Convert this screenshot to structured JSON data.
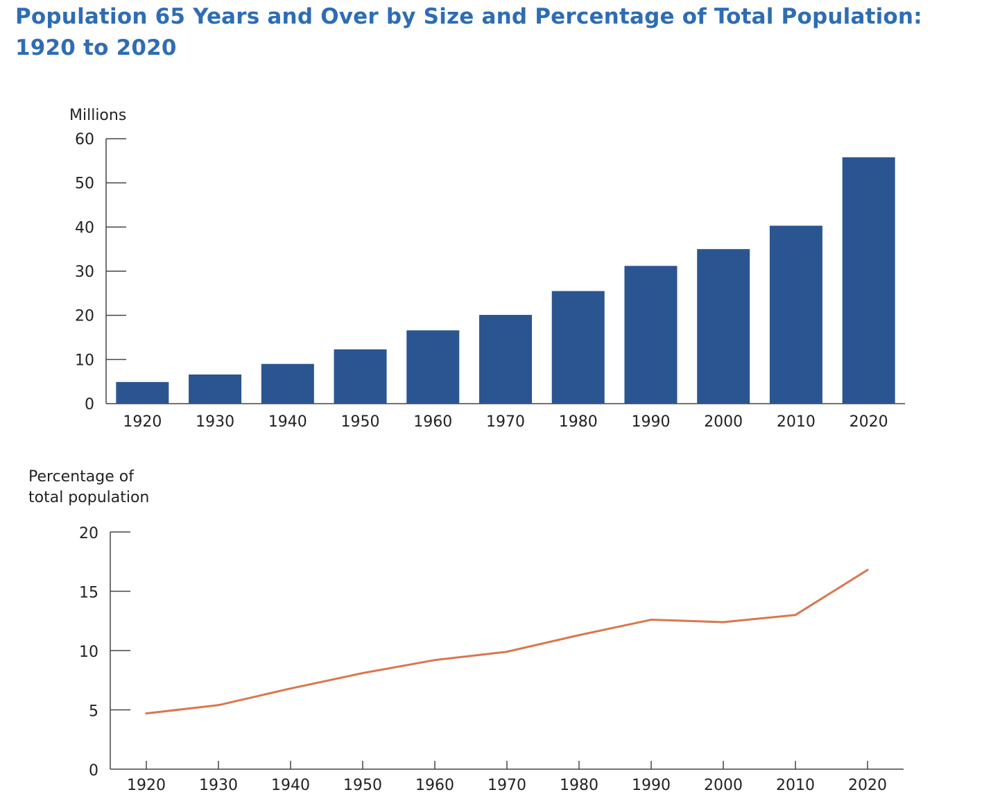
{
  "title": "Population 65 Years and Over by Size and Percentage of Total Population: 1920 to 2020",
  "colors": {
    "title": "#2e6db4",
    "bar": "#2b5590",
    "line": "#d9764f",
    "axis": "#444444"
  },
  "chart_data": [
    {
      "type": "bar",
      "ylabel": "Millions",
      "categories": [
        "1920",
        "1930",
        "1940",
        "1950",
        "1960",
        "1970",
        "1980",
        "1990",
        "2000",
        "2010",
        "2020"
      ],
      "values": [
        4.9,
        6.6,
        9.0,
        12.3,
        16.6,
        20.1,
        25.5,
        31.2,
        35.0,
        40.3,
        55.8
      ],
      "ylim": [
        0,
        60
      ],
      "yticks": [
        "0",
        "10",
        "20",
        "30",
        "40",
        "50",
        "60"
      ],
      "grid": false
    },
    {
      "type": "line",
      "ylabel": "Percentage of total population",
      "ylabel_lines": [
        "Percentage of",
        "total population"
      ],
      "categories": [
        "1920",
        "1930",
        "1940",
        "1950",
        "1960",
        "1970",
        "1980",
        "1990",
        "2000",
        "2010",
        "2020"
      ],
      "values": [
        4.7,
        5.4,
        6.8,
        8.1,
        9.2,
        9.9,
        11.3,
        12.6,
        12.4,
        13.0,
        16.8
      ],
      "ylim": [
        0,
        20
      ],
      "yticks": [
        "0",
        "5",
        "10",
        "15",
        "20"
      ],
      "grid": false
    }
  ]
}
